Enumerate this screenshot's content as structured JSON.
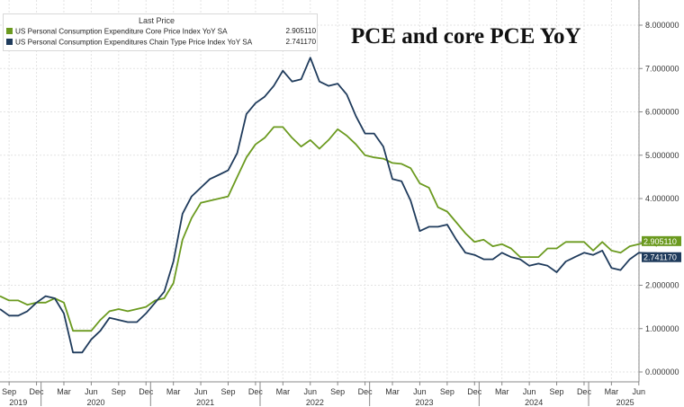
{
  "title": "PCE and core PCE YoY",
  "legend": {
    "header": "Last Price",
    "entries": [
      {
        "label": "US Personal Consumption Expenditure Core Price Index YoY SA",
        "value": "2.905110",
        "color": "#6b9a1f"
      },
      {
        "label": "US Personal Consumption Expenditures Chain Type Price Index YoY SA",
        "value": "2.741170",
        "color": "#1f3b5c"
      }
    ]
  },
  "colors": {
    "grid": "#e3e3e3",
    "axis": "#888888",
    "core": "#6b9a1f",
    "headline": "#1f3b5c"
  },
  "chart_data": {
    "type": "line",
    "x": [
      "2019-08",
      "2019-09",
      "2019-10",
      "2019-11",
      "2019-12",
      "2020-01",
      "2020-02",
      "2020-03",
      "2020-04",
      "2020-05",
      "2020-06",
      "2020-07",
      "2020-08",
      "2020-09",
      "2020-10",
      "2020-11",
      "2020-12",
      "2021-01",
      "2021-02",
      "2021-03",
      "2021-04",
      "2021-05",
      "2021-06",
      "2021-07",
      "2021-08",
      "2021-09",
      "2021-10",
      "2021-11",
      "2021-12",
      "2022-01",
      "2022-02",
      "2022-03",
      "2022-04",
      "2022-05",
      "2022-06",
      "2022-07",
      "2022-08",
      "2022-09",
      "2022-10",
      "2022-11",
      "2022-12",
      "2023-01",
      "2023-02",
      "2023-03",
      "2023-04",
      "2023-05",
      "2023-06",
      "2023-07",
      "2023-08",
      "2023-09",
      "2023-10",
      "2023-11",
      "2023-12",
      "2024-01",
      "2024-02",
      "2024-03",
      "2024-04",
      "2024-05",
      "2024-06",
      "2024-07",
      "2024-08",
      "2024-09",
      "2024-10",
      "2024-11",
      "2024-12",
      "2025-01",
      "2025-02",
      "2025-03",
      "2025-04",
      "2025-05",
      "2025-06",
      "2025-07",
      "2025-08"
    ],
    "series": [
      {
        "name": "US Personal Consumption Expenditure Core Price Index YoY SA",
        "values": [
          1.75,
          1.65,
          1.65,
          1.55,
          1.6,
          1.6,
          1.7,
          1.6,
          0.95,
          0.95,
          0.95,
          1.2,
          1.4,
          1.45,
          1.4,
          1.45,
          1.5,
          1.65,
          1.7,
          2.05,
          3.05,
          3.55,
          3.9,
          3.95,
          4.0,
          4.05,
          4.5,
          4.95,
          5.25,
          5.4,
          5.65,
          5.65,
          5.4,
          5.2,
          5.35,
          5.15,
          5.35,
          5.6,
          5.45,
          5.25,
          5.0,
          4.95,
          4.92,
          4.82,
          4.8,
          4.7,
          4.35,
          4.25,
          3.8,
          3.7,
          3.45,
          3.2,
          3.0,
          3.05,
          2.9,
          2.95,
          2.85,
          2.65,
          2.65,
          2.65,
          2.85,
          2.85,
          3.0,
          3.0,
          3.0,
          2.8,
          3.0,
          2.8,
          2.75,
          2.9,
          2.95,
          3.0,
          2.905
        ]
      },
      {
        "name": "US Personal Consumption Expenditures Chain Type Price Index YoY SA",
        "values": [
          1.45,
          1.3,
          1.3,
          1.4,
          1.6,
          1.75,
          1.7,
          1.35,
          0.45,
          0.45,
          0.75,
          0.95,
          1.25,
          1.2,
          1.15,
          1.15,
          1.35,
          1.6,
          1.85,
          2.55,
          3.65,
          4.05,
          4.25,
          4.45,
          4.55,
          4.65,
          5.05,
          5.95,
          6.2,
          6.35,
          6.6,
          6.95,
          6.7,
          6.75,
          7.25,
          6.7,
          6.6,
          6.65,
          6.4,
          5.9,
          5.5,
          5.5,
          5.2,
          4.45,
          4.4,
          3.95,
          3.25,
          3.35,
          3.35,
          3.4,
          3.05,
          2.75,
          2.7,
          2.6,
          2.6,
          2.75,
          2.65,
          2.6,
          2.45,
          2.5,
          2.45,
          2.3,
          2.55,
          2.65,
          2.75,
          2.7,
          2.8,
          2.4,
          2.35,
          2.6,
          2.75,
          2.74,
          2.741
        ]
      }
    ],
    "ylim": [
      0,
      8
    ],
    "y_ticks": [
      "0.000000",
      "1.000000",
      "2.000000",
      "3.000000",
      "4.000000",
      "5.000000",
      "6.000000",
      "7.000000",
      "8.000000"
    ],
    "x_tick_labels": [
      "Sep",
      "Dec",
      "Mar",
      "Jun",
      "Sep",
      "Dec",
      "Mar",
      "Jun",
      "Sep",
      "Dec",
      "Mar",
      "Jun",
      "Sep",
      "Dec",
      "Mar",
      "Jun",
      "Sep",
      "Dec",
      "Mar",
      "Jun",
      "Sep",
      "Dec",
      "Mar",
      "Jun",
      "Sep"
    ],
    "year_labels": [
      "2019",
      "2020",
      "2021",
      "2022",
      "2023",
      "2024",
      "2025"
    ],
    "grid": true,
    "legend_position": "top-left",
    "y_axis_side": "right"
  }
}
